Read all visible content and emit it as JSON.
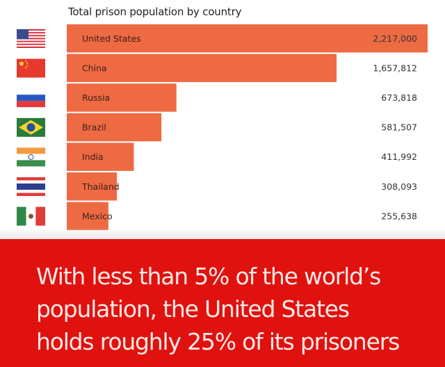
{
  "chart_data": {
    "type": "bar",
    "orientation": "horizontal",
    "title": "Total prison population by country",
    "categories": [
      "United States",
      "China",
      "Russia",
      "Brazil",
      "India",
      "Thailand",
      "Mexico"
    ],
    "values": [
      2217000,
      1657812,
      673818,
      581507,
      411992,
      308093,
      255638
    ],
    "value_labels": [
      "2,217,000",
      "1,657,812",
      "673,818",
      "581,507",
      "411,992",
      "308,093",
      "255,638"
    ],
    "flags": [
      "us-flag-icon",
      "china-flag-icon",
      "russia-flag-icon",
      "brazil-flag-icon",
      "india-flag-icon",
      "thailand-flag-icon",
      "mexico-flag-icon"
    ],
    "xlim": [
      0,
      2217000
    ],
    "bar_color": "#ee6a43",
    "grid": false,
    "legend": "none"
  },
  "banner": {
    "lines": [
      "With less than 5% of the world’s",
      "population, the United States",
      "holds roughly 25% of its prisoners"
    ],
    "color": "#e0120f"
  }
}
